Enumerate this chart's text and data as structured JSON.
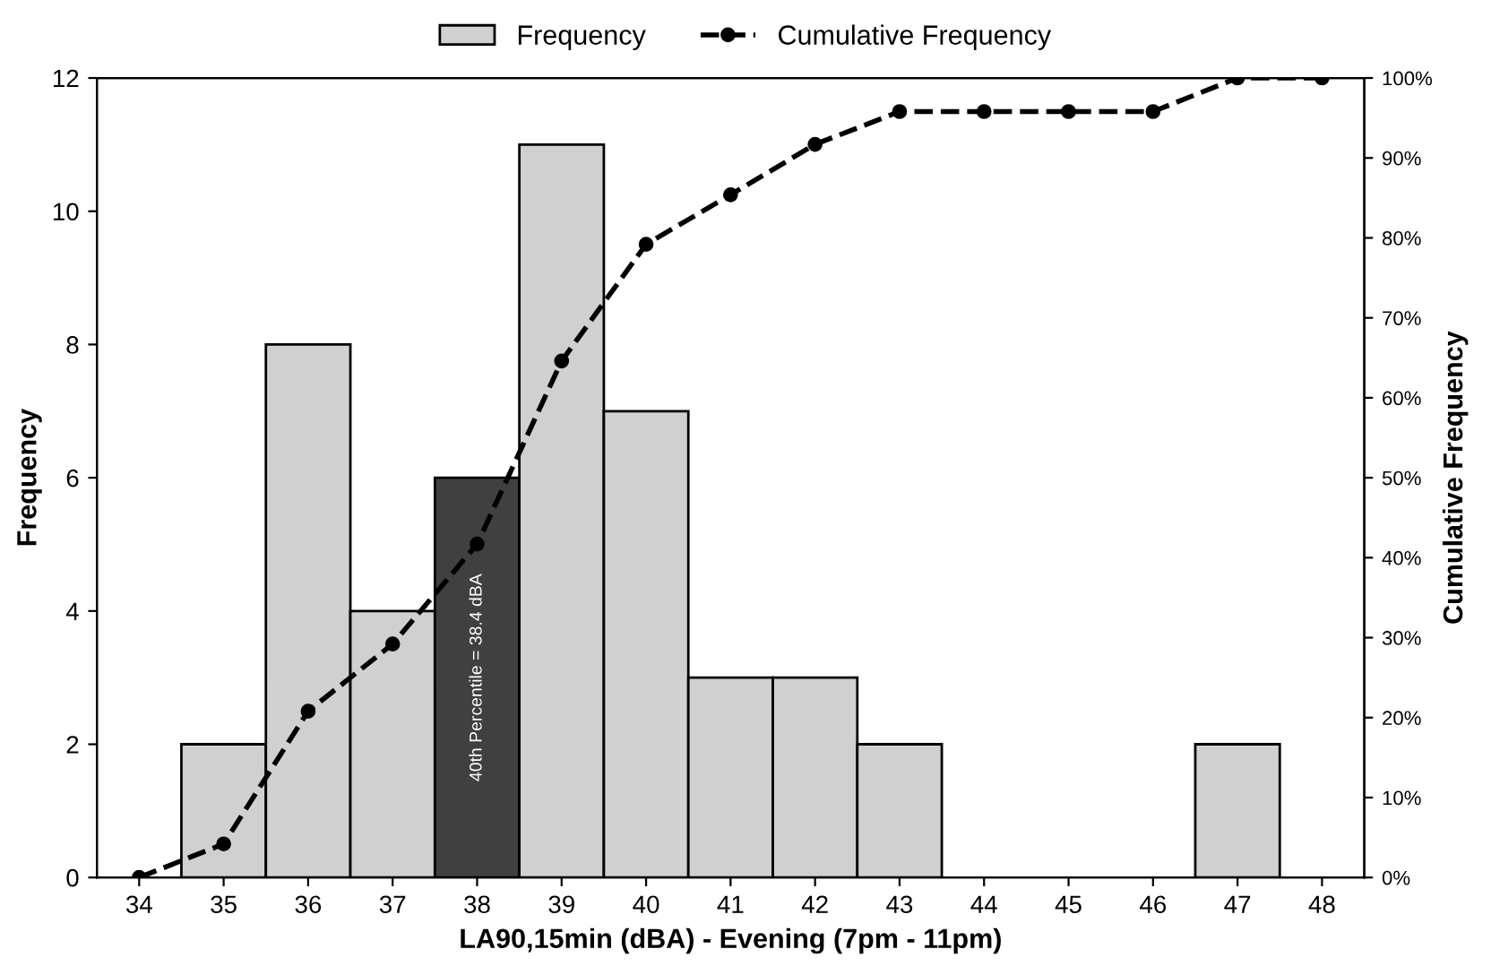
{
  "chart_data": {
    "type": "bar",
    "xlabel": "LA90,15min (dBA) - Evening (7pm - 11pm)",
    "ylabel": "Frequency",
    "y2label": "Cumulative Frequency",
    "categories": [
      "34",
      "35",
      "36",
      "37",
      "38",
      "39",
      "40",
      "41",
      "42",
      "43",
      "44",
      "45",
      "46",
      "47",
      "48"
    ],
    "series": [
      {
        "name": "Frequency",
        "type": "bar",
        "color": "#d0d0d0",
        "colors": [
          "#d0d0d0",
          "#d0d0d0",
          "#d0d0d0",
          "#d0d0d0",
          "#404040",
          "#d0d0d0",
          "#d0d0d0",
          "#d0d0d0",
          "#d0d0d0",
          "#d0d0d0",
          "#d0d0d0",
          "#d0d0d0",
          "#d0d0d0",
          "#d0d0d0",
          "#d0d0d0"
        ],
        "values": [
          null,
          2,
          8,
          4,
          6,
          11,
          7,
          3,
          3,
          2,
          null,
          null,
          null,
          2,
          null
        ]
      },
      {
        "name": "Cumulative Frequency",
        "type": "line",
        "axis": "y2",
        "color": "#000000",
        "marker": "circle",
        "line_style": "dashed",
        "values": [
          0,
          4.2,
          20.8,
          29.2,
          41.7,
          64.6,
          79.2,
          85.4,
          91.7,
          95.8,
          95.8,
          95.8,
          95.8,
          100,
          100
        ]
      }
    ],
    "ylim": [
      0,
      12
    ],
    "yticks": [
      0,
      2,
      4,
      6,
      8,
      10,
      12
    ],
    "y2lim": [
      0,
      100
    ],
    "y2ticks": [
      {
        "value": 0,
        "label": "0%"
      },
      {
        "value": 10,
        "label": "10%"
      },
      {
        "value": 20,
        "label": "20%"
      },
      {
        "value": 30,
        "label": "30%"
      },
      {
        "value": 40,
        "label": "40%"
      },
      {
        "value": 50,
        "label": "50%"
      },
      {
        "value": 60,
        "label": "60%"
      },
      {
        "value": 70,
        "label": "70%"
      },
      {
        "value": 80,
        "label": "80%"
      },
      {
        "value": 90,
        "label": "90%"
      },
      {
        "value": 100,
        "label": "100%"
      }
    ],
    "annotations": [
      "40th Percentile = 38.4 dBA"
    ],
    "grid": false,
    "legend": "top"
  }
}
